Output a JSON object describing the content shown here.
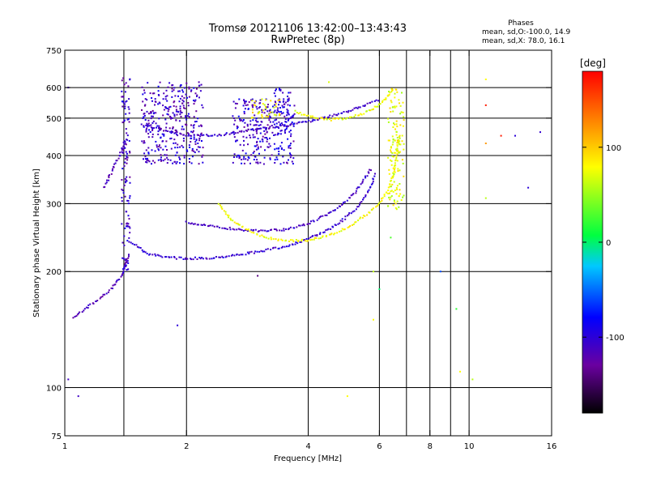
{
  "chart_data": {
    "type": "scatter",
    "title": "Tromsø 20121106 13:42:00–13:43:43",
    "subtitle": "RwPretec (8p)",
    "xlabel": "Frequency [MHz]",
    "ylabel": "Stationary phase Virtual Height [km]",
    "x_scale": "log",
    "y_scale": "log",
    "xlim": [
      1,
      16
    ],
    "ylim": [
      75,
      750
    ],
    "x_ticks": [
      1,
      2,
      4,
      6,
      8,
      10,
      16
    ],
    "x_tick_labels": [
      "1",
      "2",
      "4",
      "6",
      "8",
      "10",
      "16"
    ],
    "y_ticks": [
      75,
      100,
      200,
      300,
      400,
      500,
      600,
      750
    ],
    "y_tick_labels": [
      "75",
      "100",
      "200",
      "300",
      "400",
      "500",
      "600",
      "750"
    ],
    "x_grid_lines": [
      1.4,
      2,
      4,
      6,
      7,
      8,
      9,
      10
    ],
    "y_grid_lines": [
      100,
      200,
      300,
      400,
      500,
      600
    ],
    "grid": true,
    "stats": {
      "title": "Phases",
      "lines": [
        "mean, sd,O:-100.0, 14.9",
        "mean, sd,X:  78.0, 16.1"
      ]
    },
    "colorbar": {
      "label": "[deg]",
      "range": [
        -180,
        180
      ],
      "ticks": [
        100,
        0,
        -100
      ],
      "tick_labels": [
        "100",
        "0",
        "-100"
      ]
    },
    "traces": [
      {
        "mode": "O",
        "phase": -105,
        "x": [
          1.45,
          1.6,
          1.8,
          2.0,
          2.3,
          2.6,
          3.0,
          3.5,
          4.0,
          4.5,
          5.0,
          5.4,
          5.7,
          5.85
        ],
        "y": [
          240,
          222,
          218,
          216,
          217,
          220,
          225,
          232,
          243,
          257,
          278,
          300,
          330,
          360
        ]
      },
      {
        "mode": "O",
        "phase": -110,
        "x": [
          2.0,
          2.3,
          2.6,
          3.0,
          3.5,
          4.0,
          4.4,
          4.8,
          5.2,
          5.5,
          5.75
        ],
        "y": [
          268,
          262,
          258,
          255,
          257,
          266,
          279,
          296,
          318,
          345,
          372
        ]
      },
      {
        "mode": "X",
        "phase": 80,
        "x": [
          2.4,
          2.6,
          3.0,
          3.5,
          4.0,
          4.5,
          5.0,
          5.5,
          6.0,
          6.3,
          6.5,
          6.6,
          6.7
        ],
        "y": [
          300,
          270,
          248,
          240,
          241,
          248,
          260,
          278,
          300,
          325,
          360,
          400,
          450
        ]
      },
      {
        "mode": "O",
        "phase": -110,
        "x": [
          1.55,
          1.7,
          1.9,
          2.1,
          2.4,
          2.7,
          3.0,
          3.3,
          3.6,
          4.0,
          4.5,
          5.0,
          5.5,
          6.0
        ],
        "y": [
          480,
          470,
          455,
          450,
          452,
          460,
          468,
          475,
          480,
          490,
          505,
          520,
          540,
          560
        ]
      },
      {
        "mode": "X",
        "phase": 75,
        "x": [
          3.7,
          4.0,
          4.5,
          5.0,
          5.5,
          6.0,
          6.3,
          6.5
        ],
        "y": [
          520,
          505,
          495,
          500,
          515,
          540,
          570,
          600
        ]
      },
      {
        "mode": "O",
        "phase": -115,
        "x": [
          1.05,
          1.1,
          1.2,
          1.3,
          1.38,
          1.42,
          1.45
        ],
        "y": [
          152,
          158,
          168,
          180,
          195,
          210,
          222
        ]
      },
      {
        "mode": "O",
        "phase": -115,
        "x": [
          1.25,
          1.3,
          1.35,
          1.4,
          1.42
        ],
        "y": [
          330,
          360,
          390,
          420,
          440
        ]
      }
    ],
    "clusters": [
      {
        "phase": -110,
        "x": [
          1.55,
          2.2
        ],
        "y": [
          380,
          620
        ]
      },
      {
        "phase": -105,
        "x": [
          2.6,
          3.7
        ],
        "y": [
          380,
          560
        ]
      },
      {
        "phase": -100,
        "x": [
          3.3,
          3.7
        ],
        "y": [
          480,
          600
        ]
      },
      {
        "phase": -110,
        "x": [
          1.38,
          1.45
        ],
        "y": [
          200,
          640
        ]
      },
      {
        "phase": 80,
        "x": [
          2.9,
          3.4
        ],
        "y": [
          500,
          560
        ]
      },
      {
        "phase": 75,
        "x": [
          6.3,
          6.9
        ],
        "y": [
          290,
          600
        ]
      }
    ],
    "scattered_points": [
      {
        "x": 1.02,
        "y": 600,
        "phase": -110
      },
      {
        "x": 1.0,
        "y": 120,
        "phase": -100
      },
      {
        "x": 1.02,
        "y": 105,
        "phase": -110
      },
      {
        "x": 1.08,
        "y": 95,
        "phase": -110
      },
      {
        "x": 1.9,
        "y": 145,
        "phase": -100
      },
      {
        "x": 5.0,
        "y": 95,
        "phase": 80
      },
      {
        "x": 5.8,
        "y": 200,
        "phase": 60
      },
      {
        "x": 6.0,
        "y": 180,
        "phase": 0
      },
      {
        "x": 8.5,
        "y": 200,
        "phase": -60
      },
      {
        "x": 9.3,
        "y": 160,
        "phase": 20
      },
      {
        "x": 9.5,
        "y": 110,
        "phase": 80
      },
      {
        "x": 10.2,
        "y": 105,
        "phase": 60
      },
      {
        "x": 11.0,
        "y": 630,
        "phase": 80
      },
      {
        "x": 11.0,
        "y": 540,
        "phase": 170
      },
      {
        "x": 11.0,
        "y": 430,
        "phase": 120
      },
      {
        "x": 11.0,
        "y": 310,
        "phase": 60
      },
      {
        "x": 12.0,
        "y": 450,
        "phase": 170
      },
      {
        "x": 13.0,
        "y": 450,
        "phase": -100
      },
      {
        "x": 14.0,
        "y": 330,
        "phase": -100
      },
      {
        "x": 15.0,
        "y": 460,
        "phase": -105
      },
      {
        "x": 4.5,
        "y": 620,
        "phase": 70
      },
      {
        "x": 5.8,
        "y": 150,
        "phase": 80
      },
      {
        "x": 6.4,
        "y": 245,
        "phase": 30
      },
      {
        "x": 3.0,
        "y": 195,
        "phase": -140
      }
    ]
  }
}
